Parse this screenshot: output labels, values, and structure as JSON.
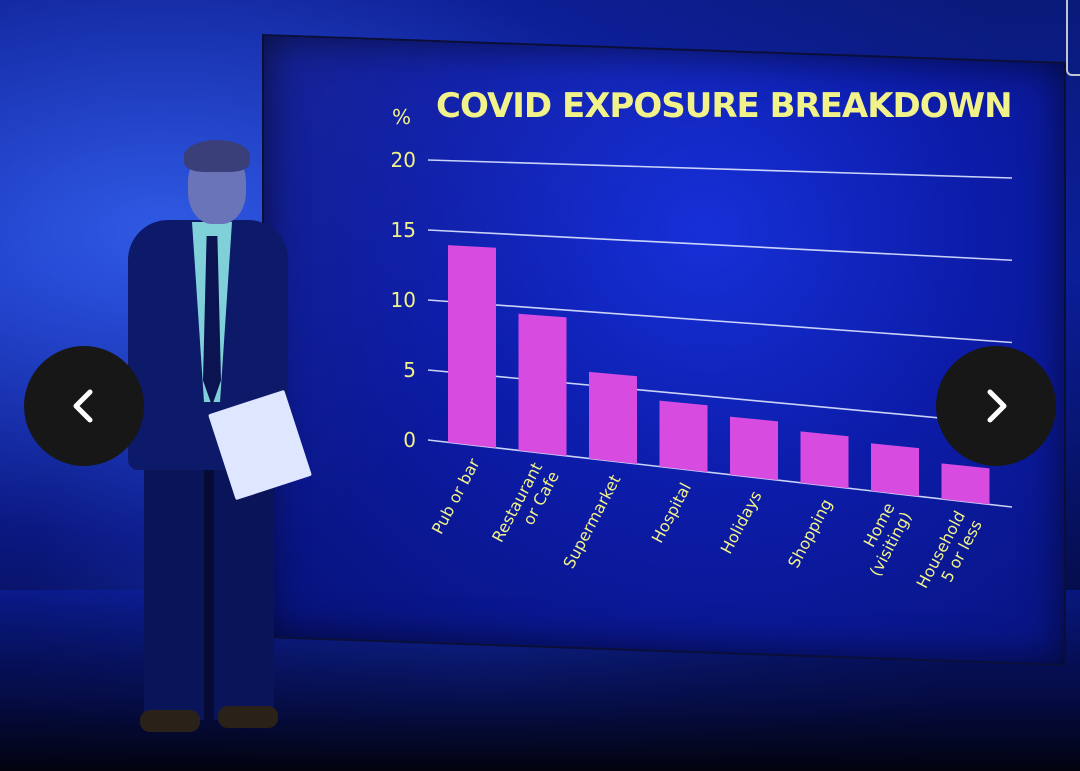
{
  "viewer": {
    "prev_icon": "chevron-left-icon",
    "next_icon": "chevron-right-icon"
  },
  "colors": {
    "bar": "#d84be0",
    "text": "#f2f28a",
    "wall": "#0c1ca8"
  },
  "chart_data": {
    "type": "bar",
    "title": "COVID EXPOSURE BREAKDOWN",
    "ylabel": "%",
    "xlabel": "",
    "ylim": [
      0,
      20
    ],
    "yticks": [
      0,
      5,
      10,
      15,
      20
    ],
    "grid": true,
    "categories": [
      "Pub or bar",
      "Restaurant or Cafe",
      "Supermarket",
      "Hospital",
      "Holidays",
      "Shopping",
      "Home (visiting)",
      "Household 5 or less"
    ],
    "category_lines": [
      [
        "Pub or bar"
      ],
      [
        "Restaurant",
        "or Cafe"
      ],
      [
        "Supermarket"
      ],
      [
        "Hospital"
      ],
      [
        "Holidays"
      ],
      [
        "Shopping"
      ],
      [
        "Home",
        "(visiting)"
      ],
      [
        "Household",
        "5 or less"
      ]
    ],
    "values": [
      14,
      9.5,
      5.9,
      4.4,
      3.8,
      3.3,
      3.0,
      2.2
    ]
  }
}
